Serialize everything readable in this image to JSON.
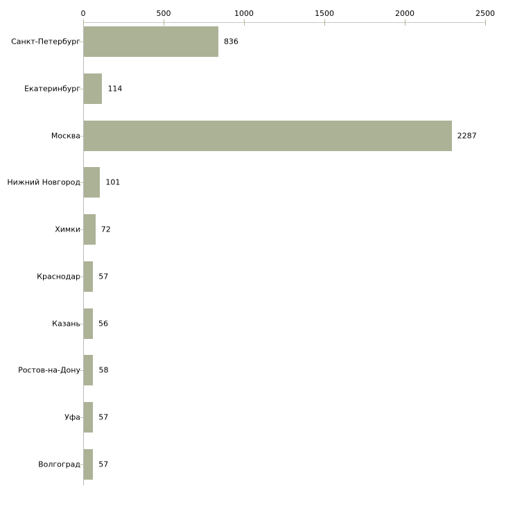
{
  "chart_data": {
    "type": "bar",
    "orientation": "horizontal",
    "title": "",
    "xlabel": "",
    "ylabel": "",
    "categories": [
      "Санкт-Петербург",
      "Екатеринбург",
      "Москва",
      "Нижний Новгород",
      "Химки",
      "Краснодар",
      "Казань",
      "Ростов-на-Дону",
      "Уфа",
      "Волгоград"
    ],
    "values": [
      836,
      114,
      2287,
      101,
      72,
      57,
      56,
      58,
      57,
      57
    ],
    "value_labels": [
      "836",
      "114",
      "2287",
      "101",
      "72",
      "57",
      "56",
      "58",
      "57",
      "57"
    ],
    "xlim": [
      0,
      2500
    ],
    "x_ticks": [
      0,
      500,
      1000,
      1500,
      2000,
      2500
    ],
    "x_tick_labels": [
      "0",
      "500",
      "1000",
      "1500",
      "2000",
      "2500"
    ],
    "axis_position": "top",
    "grid": false,
    "legend": null,
    "colors": {
      "bar_fill": "#acb296",
      "axis_line": "#c6c6c6",
      "y_axis_line": "#b9b9b9",
      "tick_mark": "#b2b592",
      "category_tick": "#c5c8ae",
      "text": "#000000",
      "background": "#ffffff"
    }
  }
}
